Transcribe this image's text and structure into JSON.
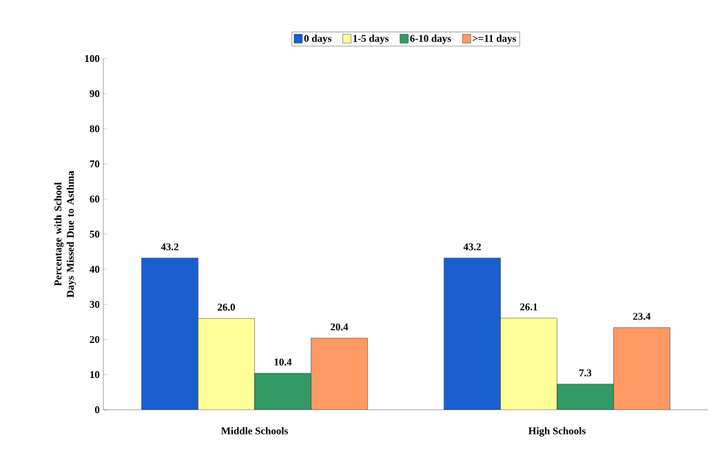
{
  "chart_data": {
    "type": "bar",
    "ylabel": "Percentage with School Days Missed Due to Asthma",
    "categories": [
      "Middle Schools",
      "High Schools"
    ],
    "series": [
      {
        "name": "0 days",
        "color": "#1a5fd0",
        "values": [
          43.2,
          43.2
        ],
        "value_labels": [
          "43.2",
          "43.2"
        ]
      },
      {
        "name": "1-5 days",
        "color": "#ffff99",
        "values": [
          26.0,
          26.1
        ],
        "value_labels": [
          "26.0",
          "26.1"
        ]
      },
      {
        "name": "6-10 days",
        "color": "#339966",
        "values": [
          10.4,
          7.3
        ],
        "value_labels": [
          "10.4",
          "7.3"
        ]
      },
      {
        "name": ">=11 days",
        "color": "#ff9966",
        "values": [
          20.4,
          23.4
        ],
        "value_labels": [
          "20.4",
          "23.4"
        ]
      }
    ],
    "ylim": [
      0,
      100
    ],
    "yticks": [
      0,
      10,
      20,
      30,
      40,
      50,
      60,
      70,
      80,
      90,
      100
    ],
    "grid": false,
    "legend": "top"
  }
}
